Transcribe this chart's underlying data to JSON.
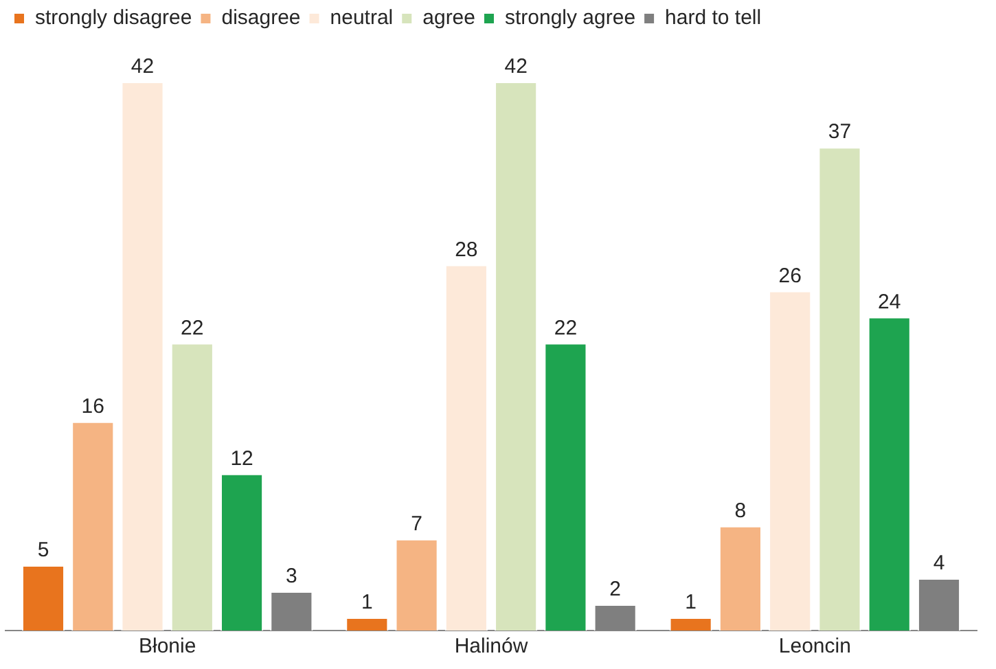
{
  "chart_data": {
    "type": "bar",
    "categories": [
      "Błonie",
      "Halinów",
      "Leoncin"
    ],
    "series": [
      {
        "name": "strongly disagree",
        "color": "#e8741e",
        "values": [
          5,
          1,
          1
        ]
      },
      {
        "name": "disagree",
        "color": "#f5b483",
        "values": [
          16,
          7,
          8
        ]
      },
      {
        "name": "neutral",
        "color": "#fde9d9",
        "values": [
          42,
          28,
          26
        ]
      },
      {
        "name": "agree",
        "color": "#d7e4bc",
        "values": [
          22,
          42,
          37
        ]
      },
      {
        "name": "strongly agree",
        "color": "#1ea450",
        "values": [
          12,
          22,
          24
        ]
      },
      {
        "name": "hard to tell",
        "color": "#7f7f7f",
        "values": [
          3,
          2,
          4
        ]
      }
    ],
    "data_labels": true,
    "legend": "top left",
    "grid": false,
    "tick_labels": "x"
  }
}
